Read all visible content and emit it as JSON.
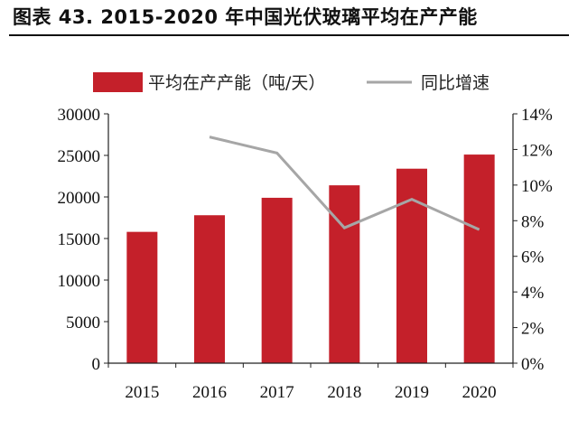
{
  "title": "图表 43. 2015-2020 年中国光伏玻璃平均在产产能",
  "colors": {
    "bar": "#c4202a",
    "line": "#a6a6a6",
    "axis": "#222222"
  },
  "chart_data": {
    "type": "bar",
    "categories": [
      "2015",
      "2016",
      "2017",
      "2018",
      "2019",
      "2020"
    ],
    "series": [
      {
        "name": "平均在产产能（吨/天）",
        "type": "bar",
        "axis": "left",
        "values": [
          15800,
          17800,
          19900,
          21400,
          23400,
          25100
        ]
      },
      {
        "name": "同比增速",
        "type": "line",
        "axis": "right",
        "values": [
          null,
          12.7,
          11.8,
          7.6,
          9.2,
          7.5
        ]
      }
    ],
    "ylim": [
      0,
      30000
    ],
    "yticks": [
      "0",
      "5000",
      "10000",
      "15000",
      "20000",
      "25000",
      "30000"
    ],
    "y2lim": [
      0,
      14
    ],
    "y2ticks": [
      "0%",
      "2%",
      "4%",
      "6%",
      "8%",
      "10%",
      "12%",
      "14%"
    ],
    "legend": "top"
  }
}
